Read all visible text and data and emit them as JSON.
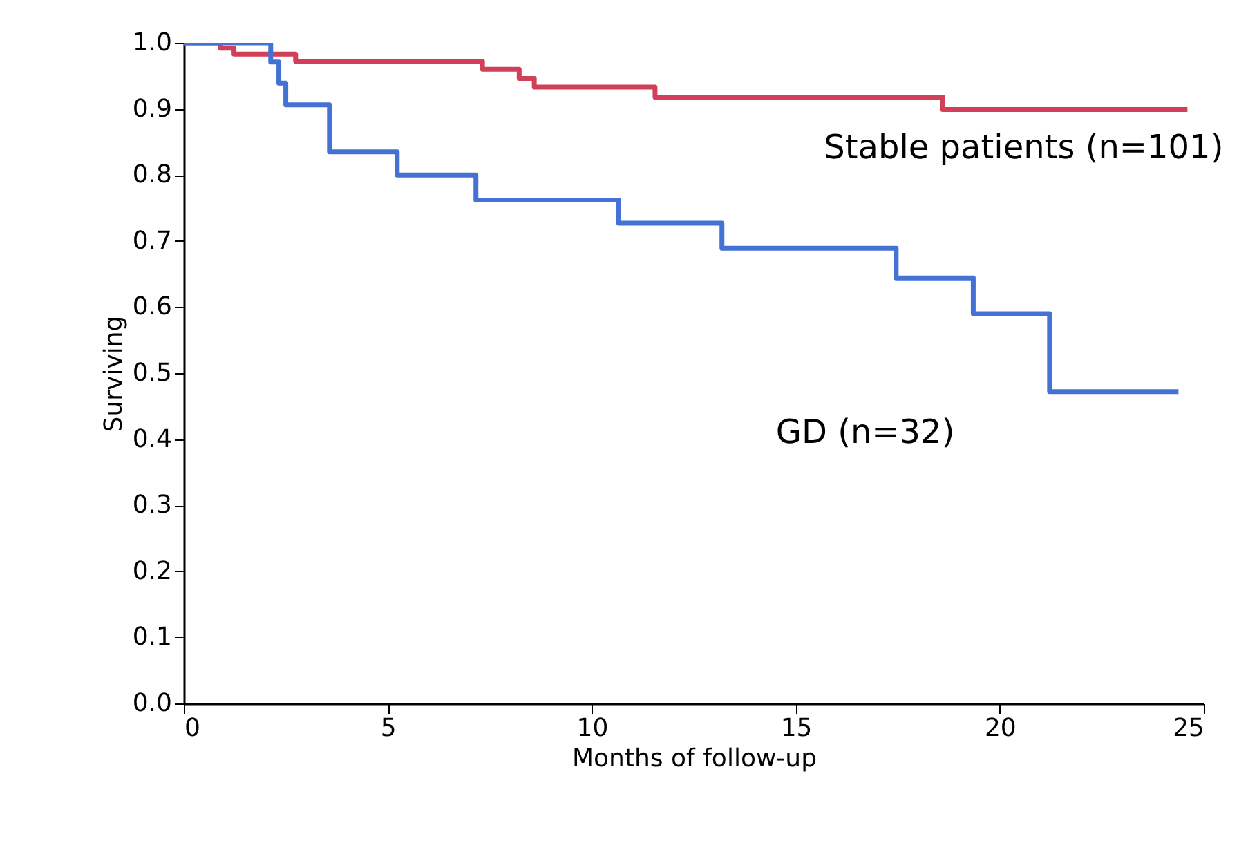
{
  "chart_data": {
    "type": "step",
    "xlabel": "Months of follow-up",
    "ylabel": "Surviving",
    "xlim": [
      0,
      25
    ],
    "xticks": [
      0,
      5,
      10,
      15,
      20,
      25
    ],
    "ylim": [
      0,
      1
    ],
    "yticks": [
      {
        "value": 0,
        "label": "0.0"
      },
      {
        "value": 0.1,
        "label": "0.1"
      },
      {
        "value": 0.2,
        "label": "0.2"
      },
      {
        "value": 0.3,
        "label": "0.3"
      },
      {
        "value": 0.4,
        "label": "0.4"
      },
      {
        "value": 0.5,
        "label": "0.5"
      },
      {
        "value": 0.6,
        "label": "0.6"
      },
      {
        "value": 0.7,
        "label": "0.7"
      },
      {
        "value": 0.8,
        "label": "0.8"
      },
      {
        "value": 0.9,
        "label": "0.9"
      },
      {
        "value": 1,
        "label": "1.0"
      }
    ],
    "grid": false,
    "marker": "none",
    "line_style": "solid",
    "series": [
      {
        "name": "Stable patients (n=101)",
        "color": "#d04058",
        "x": [
          0,
          0.89,
          1.23,
          2.74,
          7.32,
          8.22,
          8.59,
          11.55,
          18.6,
          24.6
        ],
        "values": [
          1.0,
          0.992,
          0.983,
          0.972,
          0.96,
          0.946,
          0.933,
          0.918,
          0.899,
          0.899
        ]
      },
      {
        "name": "GD (n=32)",
        "color": "#4472d4",
        "x": [
          0,
          2.13,
          2.33,
          2.5,
          3.57,
          5.23,
          7.16,
          10.66,
          13.19,
          17.46,
          19.35,
          21.22,
          24.38
        ],
        "values": [
          1.0,
          0.971,
          0.939,
          0.906,
          0.835,
          0.8,
          0.762,
          0.727,
          0.689,
          0.644,
          0.59,
          0.472,
          0.472
        ]
      }
    ]
  }
}
